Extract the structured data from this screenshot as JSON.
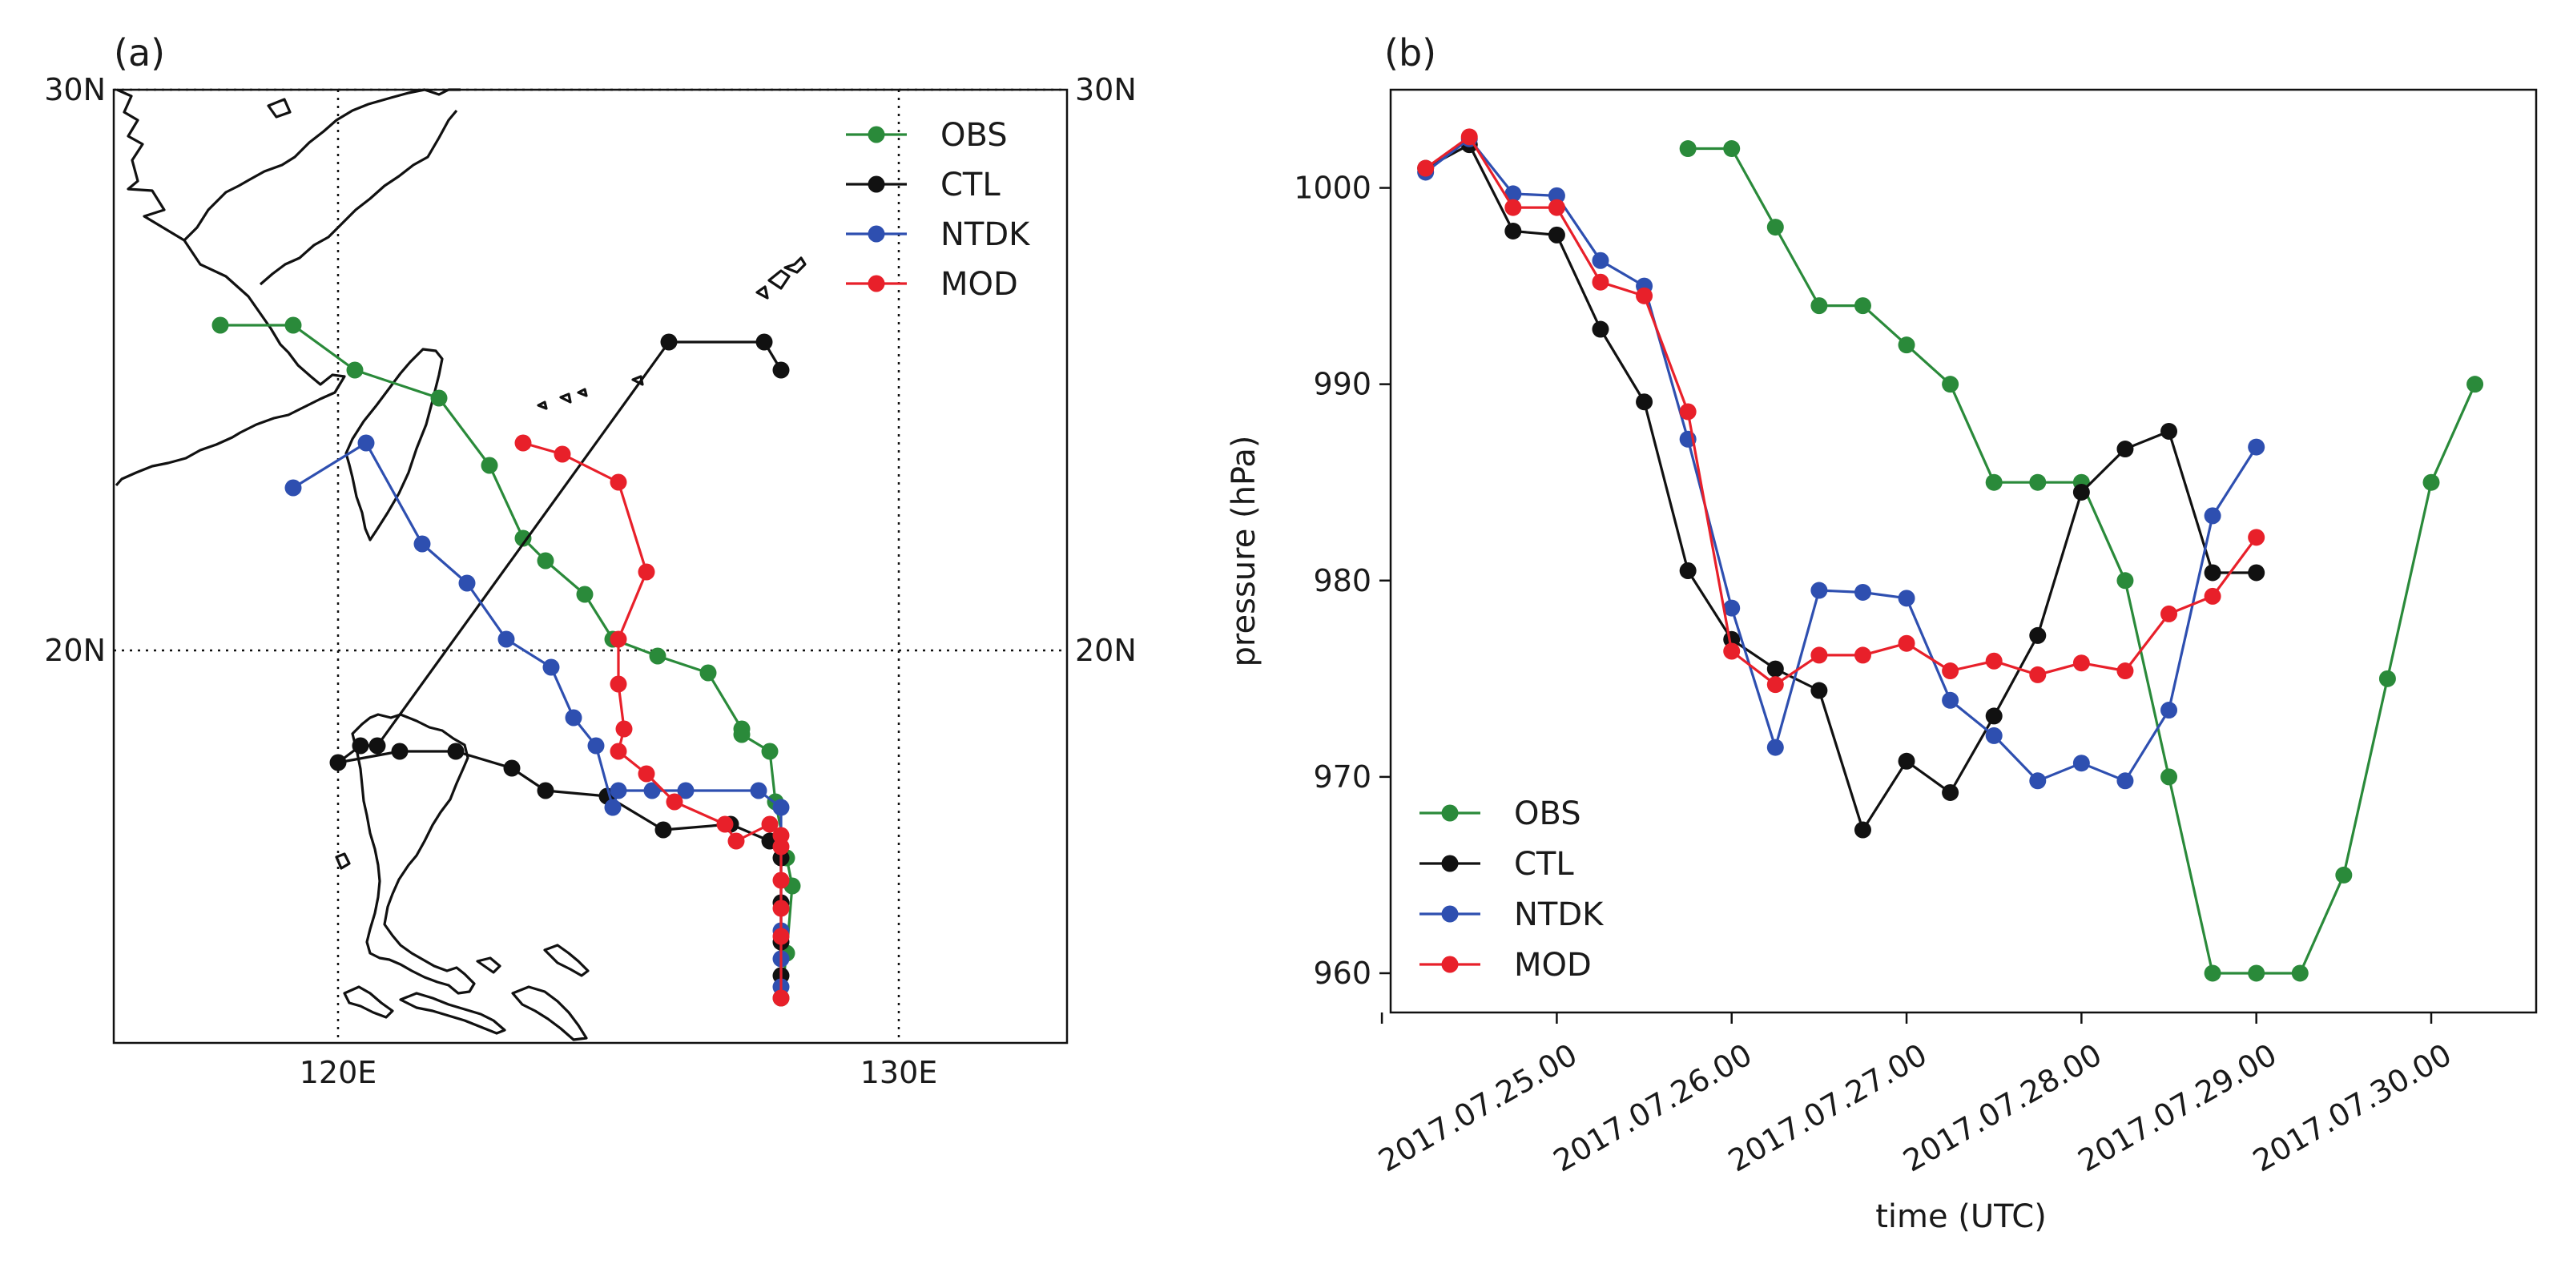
{
  "chart_data": [
    {
      "type": "line",
      "panel_label": "(a)",
      "title": "",
      "xlabel": "",
      "ylabel": "",
      "xlim": [
        116,
        133
      ],
      "ylim": [
        13,
        30
      ],
      "grid": true,
      "xticks": [
        120,
        130
      ],
      "yticks": [
        20,
        30
      ],
      "xtick_labels": [
        "120E",
        "130E"
      ],
      "ytick_labels": [
        "20N",
        "30N"
      ],
      "legend_location": "top-right",
      "series": [
        {
          "name": "OBS",
          "color": "#2a8a3a",
          "x": [
            117.9,
            119.2,
            120.3,
            121.8,
            122.7,
            123.3,
            123.7,
            124.4,
            124.9,
            125.7,
            126.6,
            127.2,
            127.2,
            127.7,
            127.8,
            128.0,
            128.1,
            128.0,
            127.9
          ],
          "y": [
            25.8,
            25.8,
            25.0,
            24.5,
            23.3,
            22.0,
            21.6,
            21.0,
            20.2,
            19.9,
            19.6,
            18.6,
            18.5,
            18.2,
            17.3,
            16.3,
            15.8,
            14.6,
            13.8
          ]
        },
        {
          "name": "CTL",
          "color": "#111111",
          "x": [
            127.9,
            127.6,
            125.9,
            120.7,
            120.4,
            120.0,
            121.1,
            122.1,
            123.1,
            123.7,
            124.8,
            125.8,
            127.0,
            127.7,
            127.9,
            127.9,
            127.9,
            127.9
          ],
          "y": [
            25.0,
            25.5,
            25.5,
            18.3,
            18.3,
            18.0,
            18.2,
            18.2,
            17.9,
            17.5,
            17.4,
            16.8,
            16.9,
            16.6,
            16.3,
            15.5,
            14.8,
            14.2
          ]
        },
        {
          "name": "NTDK",
          "color": "#2e4fb0",
          "x": [
            119.2,
            120.5,
            121.5,
            122.3,
            123.0,
            123.8,
            124.2,
            124.6,
            124.9,
            125.0,
            125.6,
            126.2,
            127.5,
            127.9,
            127.9,
            127.9,
            127.9
          ],
          "y": [
            22.9,
            23.7,
            21.9,
            21.2,
            20.2,
            19.7,
            18.8,
            18.3,
            17.2,
            17.5,
            17.5,
            17.5,
            17.5,
            17.2,
            15.0,
            14.5,
            14.0
          ]
        },
        {
          "name": "MOD",
          "color": "#e8202a",
          "x": [
            123.3,
            124.0,
            125.0,
            125.5,
            125.0,
            125.0,
            125.1,
            125.0,
            125.5,
            126.0,
            126.9,
            127.1,
            127.7,
            127.9,
            127.9,
            127.9,
            127.9,
            127.9,
            127.9
          ],
          "y": [
            23.7,
            23.5,
            23.0,
            21.4,
            20.2,
            19.4,
            18.6,
            18.2,
            17.8,
            17.3,
            16.9,
            16.6,
            16.9,
            16.7,
            16.5,
            15.9,
            15.4,
            14.9,
            13.8
          ]
        }
      ]
    },
    {
      "type": "line",
      "panel_label": "(b)",
      "title": "",
      "xlabel": "time (UTC)",
      "ylabel": "pressure (hPa)",
      "xlim": [
        -0.95,
        5.6
      ],
      "ylim": [
        958,
        1005
      ],
      "grid": false,
      "legend_location": "bottom-left",
      "xticks": [
        -1,
        0,
        1,
        2,
        3,
        4,
        5
      ],
      "xtick_labels": [
        "2017.07.25.00",
        "2017.07.26.00",
        "2017.07.27.00",
        "2017.07.28.00",
        "2017.07.29.00",
        "2017.07.30.00"
      ],
      "xtick_labels_positions": [
        0,
        1,
        2,
        3,
        4,
        5
      ],
      "yticks": [
        960,
        970,
        980,
        990,
        1000
      ],
      "ytick_labels": [
        "960",
        "970",
        "980",
        "990",
        "1000"
      ],
      "series": [
        {
          "name": "OBS",
          "color": "#2a8a3a",
          "x": [
            0.75,
            1.0,
            1.25,
            1.5,
            1.75,
            2.0,
            2.25,
            2.5,
            2.75,
            3.0,
            3.25,
            3.5,
            3.75,
            4.0,
            4.25,
            4.5,
            4.75,
            5.0,
            5.25
          ],
          "y": [
            1002,
            1002,
            998,
            994,
            994,
            992,
            990,
            985,
            985,
            985,
            980,
            970,
            960,
            960,
            960,
            965,
            975,
            985,
            990
          ]
        },
        {
          "name": "CTL",
          "color": "#111111",
          "x": [
            -0.75,
            -0.5,
            -0.25,
            0.0,
            0.25,
            0.5,
            0.75,
            1.0,
            1.25,
            1.5,
            1.75,
            2.0,
            2.25,
            2.5,
            2.75,
            3.0,
            3.25,
            3.5,
            3.75,
            4.0
          ],
          "y": [
            1001,
            1002.2,
            997.8,
            997.6,
            992.8,
            989.1,
            980.5,
            977.0,
            975.5,
            974.4,
            967.3,
            970.8,
            969.2,
            973.1,
            977.2,
            984.5,
            986.7,
            987.6,
            980.4,
            980.4
          ]
        },
        {
          "name": "NTDK",
          "color": "#2e4fb0",
          "x": [
            -0.75,
            -0.5,
            -0.25,
            0.0,
            0.25,
            0.5,
            0.75,
            1.0,
            1.25,
            1.5,
            1.75,
            2.0,
            2.25,
            2.5,
            2.75,
            3.0,
            3.25,
            3.5,
            3.75,
            4.0
          ],
          "y": [
            1000.8,
            1002.5,
            999.7,
            999.6,
            996.3,
            995.0,
            987.2,
            978.6,
            971.5,
            979.5,
            979.4,
            979.1,
            973.9,
            972.1,
            969.8,
            970.7,
            969.8,
            973.4,
            983.3,
            986.8
          ]
        },
        {
          "name": "MOD",
          "color": "#e8202a",
          "x": [
            -0.75,
            -0.5,
            -0.25,
            0.0,
            0.25,
            0.5,
            0.75,
            1.0,
            1.25,
            1.5,
            1.75,
            2.0,
            2.25,
            2.5,
            2.75,
            3.0,
            3.25,
            3.5,
            3.75,
            4.0
          ],
          "y": [
            1001.0,
            1002.6,
            999.0,
            999.0,
            995.2,
            994.5,
            988.6,
            976.4,
            974.7,
            976.2,
            976.2,
            976.8,
            975.4,
            975.9,
            975.2,
            975.8,
            975.4,
            978.3,
            979.2,
            982.2
          ]
        }
      ]
    }
  ]
}
